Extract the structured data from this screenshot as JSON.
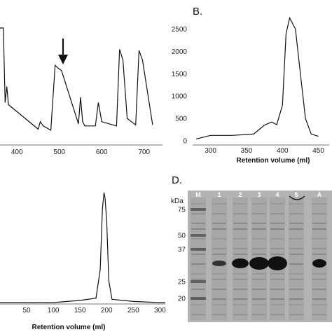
{
  "panels": {
    "A": {
      "x_ticks": [
        "400",
        "500",
        "600",
        "700"
      ]
    },
    "B": {
      "letter": "B.",
      "x_ticks": [
        "300",
        "350",
        "400",
        "450"
      ],
      "y_ticks": [
        "0",
        "500",
        "1000",
        "1500",
        "2000",
        "2500"
      ],
      "xlabel": "Retention volume (ml)"
    },
    "C": {
      "x_ticks": [
        "50",
        "100",
        "150",
        "200",
        "250",
        "300"
      ],
      "xlabel": "Retention volume (ml)"
    },
    "D": {
      "letter": "D.",
      "unit_label": "kDa",
      "lanes": [
        "M",
        "1",
        "2",
        "3",
        "4",
        "5",
        "A"
      ],
      "markers": [
        "75",
        "50",
        "37",
        "25",
        "20"
      ]
    }
  },
  "chart_data": [
    {
      "type": "line",
      "panel": "A",
      "x": [
        360,
        368,
        372,
        376,
        380,
        450,
        455,
        462,
        480,
        490,
        498,
        505,
        545,
        550,
        555,
        560,
        585,
        592,
        600,
        635,
        642,
        650,
        660,
        680,
        688,
        696,
        720
      ],
      "y": [
        1.0,
        1.0,
        0.3,
        0.45,
        0.28,
        0.05,
        0.12,
        0.08,
        0.04,
        0.65,
        0.62,
        0.6,
        0.1,
        0.35,
        0.12,
        0.08,
        0.08,
        0.3,
        0.12,
        0.08,
        0.8,
        0.7,
        0.15,
        0.09,
        0.79,
        0.7,
        0.09
      ],
      "xlim": [
        355,
        740
      ],
      "annotations": [
        "arrow at x=490"
      ]
    },
    {
      "type": "line",
      "panel": "B",
      "x": [
        280,
        300,
        330,
        360,
        375,
        385,
        392,
        400,
        405,
        410,
        418,
        425,
        432,
        440,
        450
      ],
      "y": [
        40,
        120,
        120,
        150,
        350,
        420,
        360,
        800,
        2400,
        2750,
        2500,
        1500,
        500,
        150,
        100
      ],
      "xlim": [
        275,
        465
      ],
      "ylim": [
        -100,
        2900
      ],
      "xlabel": "Retention volume (ml)",
      "grid": false
    },
    {
      "type": "line",
      "panel": "C",
      "x": [
        0,
        50,
        100,
        150,
        180,
        188,
        192,
        195,
        197,
        200,
        204,
        210,
        250,
        300,
        310
      ],
      "y": [
        0,
        0,
        0,
        0.02,
        0.04,
        0.3,
        0.85,
        1.0,
        0.95,
        0.75,
        0.2,
        0.03,
        0.01,
        0.0,
        0.0
      ],
      "xlim": [
        0,
        310
      ],
      "xlabel": "Retention volume (ml)"
    }
  ]
}
